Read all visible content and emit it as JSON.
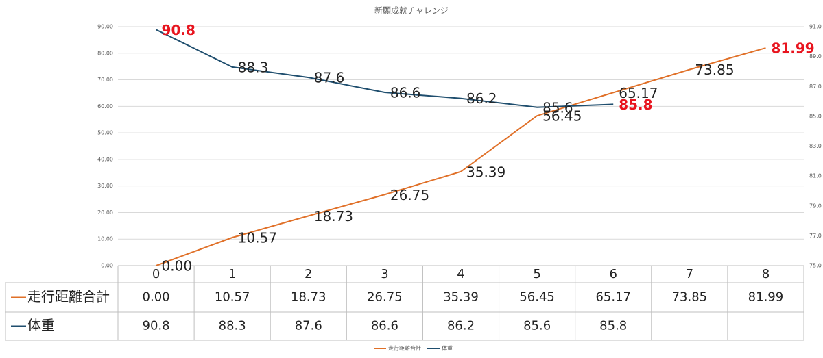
{
  "chart_data": {
    "type": "line",
    "title": "新願成就チャレンジ",
    "categories": [
      "0",
      "1",
      "2",
      "3",
      "4",
      "5",
      "6",
      "7",
      "8"
    ],
    "series": [
      {
        "name": "走行距離合計",
        "color": "#e07028",
        "values": [
          0,
          10.57,
          18.73,
          26.75,
          35.39,
          56.45,
          65.17,
          73.85,
          81.99
        ],
        "value_labels": [
          "0.00",
          "10.57",
          "18.73",
          "26.75",
          "35.39",
          "56.45",
          "65.17",
          "73.85",
          "81.99"
        ]
      },
      {
        "name": "体重",
        "color": "#1f4e6e",
        "axis": "y2",
        "values": [
          90.8,
          88.3,
          87.6,
          86.6,
          86.2,
          85.6,
          85.8,
          null,
          null
        ]
      }
    ],
    "ylim": [
      0,
      90
    ],
    "yticks": [
      {
        "value": 0,
        "label": "0.00"
      },
      {
        "value": 10,
        "label": "10.00"
      },
      {
        "value": 20,
        "label": "20.00"
      },
      {
        "value": 30,
        "label": "30.00"
      },
      {
        "value": 40,
        "label": "40.00"
      },
      {
        "value": 50,
        "label": "50.00"
      },
      {
        "value": 60,
        "label": "60.00"
      },
      {
        "value": 70,
        "label": "70.00"
      },
      {
        "value": 80,
        "label": "80.00"
      },
      {
        "value": 90,
        "label": "90.00"
      }
    ],
    "y2lim": [
      75,
      91
    ],
    "y2ticks": [
      {
        "value": 75,
        "label": "75.0"
      },
      {
        "value": 77,
        "label": "77.0"
      },
      {
        "value": 79,
        "label": "79.0"
      },
      {
        "value": 81,
        "label": "81.0"
      },
      {
        "value": 83,
        "label": "83.0"
      },
      {
        "value": 85,
        "label": "85.0"
      },
      {
        "value": 87,
        "label": "87.0"
      },
      {
        "value": 89,
        "label": "89.0"
      },
      {
        "value": 91,
        "label": "91.0"
      }
    ],
    "grid": true,
    "legend": "bottom",
    "highlight_color": "#e8141e"
  }
}
